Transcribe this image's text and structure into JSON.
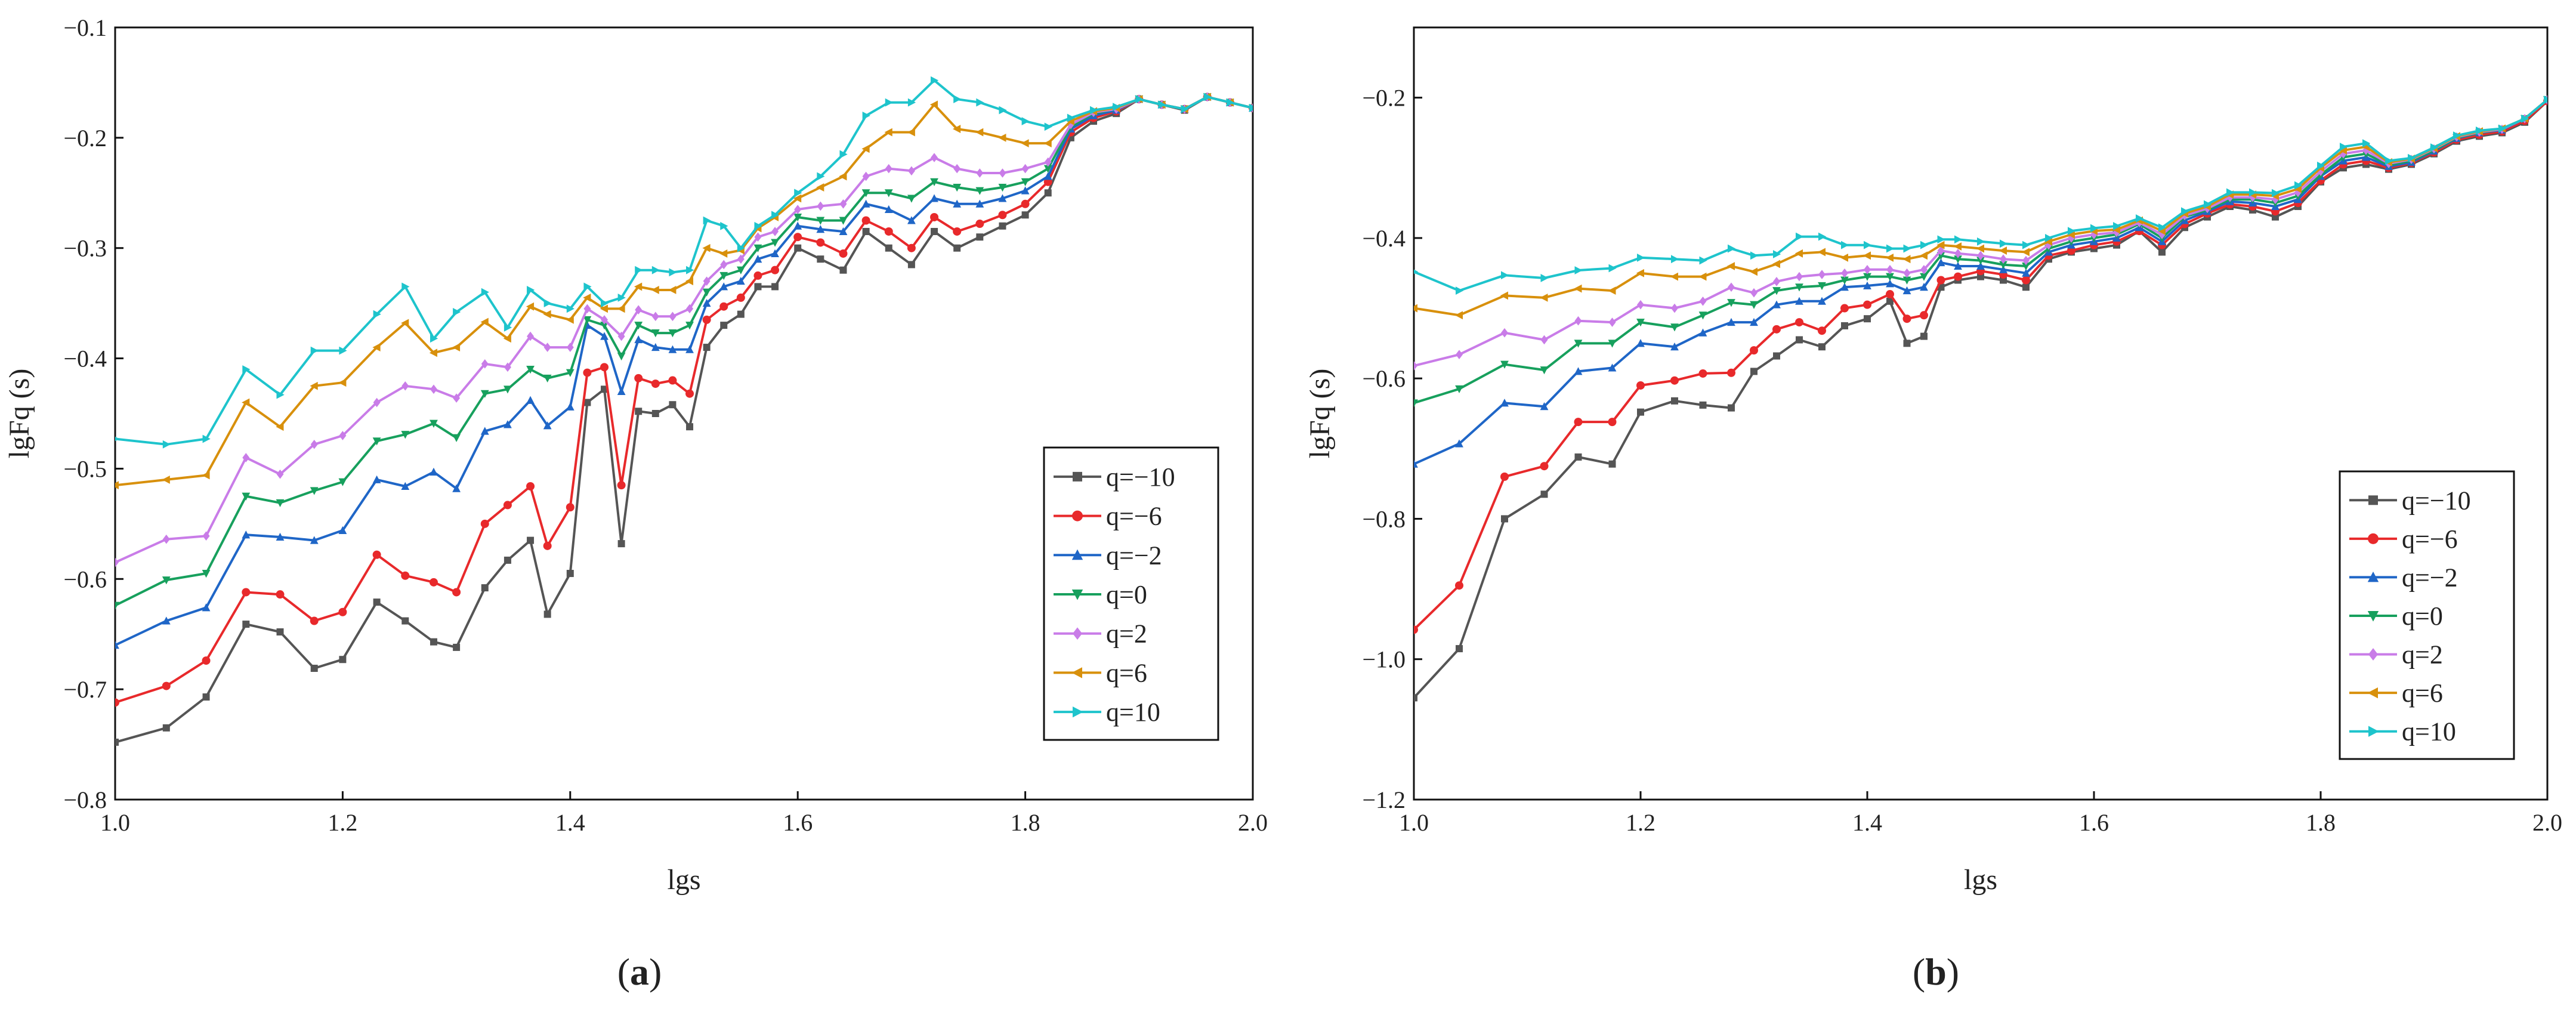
{
  "chart_data": [
    {
      "type": "line",
      "panel": "a",
      "caption_prefix": "(",
      "caption_letter": "a",
      "caption_suffix": ")",
      "title": "",
      "xlabel": "lgs",
      "ylabel": "lgFq (s)",
      "xlim": [
        1.0,
        2.0
      ],
      "ylim": [
        -0.8,
        -0.1
      ],
      "xticks": [
        1.0,
        1.2,
        1.4,
        1.6,
        1.8,
        2.0
      ],
      "xtick_labels": [
        "1.0",
        "1.2",
        "1.4",
        "1.6",
        "1.8",
        "2.0"
      ],
      "yticks": [
        -0.8,
        -0.7,
        -0.6,
        -0.5,
        -0.4,
        -0.3,
        -0.2,
        -0.1
      ],
      "ytick_labels": [
        "−0.8",
        "−0.7",
        "−0.6",
        "−0.5",
        "−0.4",
        "−0.3",
        "−0.2",
        "−0.1"
      ],
      "legend_position": "lower-right",
      "x": [
        1.0,
        1.045,
        1.08,
        1.115,
        1.145,
        1.175,
        1.2,
        1.23,
        1.255,
        1.28,
        1.3,
        1.325,
        1.345,
        1.365,
        1.38,
        1.4,
        1.415,
        1.43,
        1.445,
        1.46,
        1.475,
        1.49,
        1.505,
        1.52,
        1.535,
        1.55,
        1.565,
        1.58,
        1.6,
        1.62,
        1.64,
        1.66,
        1.68,
        1.7,
        1.72,
        1.74,
        1.76,
        1.78,
        1.8,
        1.82,
        1.84,
        1.86,
        1.88,
        1.9,
        1.92,
        1.94,
        1.96,
        1.98,
        2.0
      ],
      "series": [
        {
          "name": "q=−10",
          "color": "#555555",
          "marker": "square",
          "values": [
            -0.748,
            -0.735,
            -0.707,
            -0.641,
            -0.648,
            -0.681,
            -0.673,
            -0.621,
            -0.638,
            -0.657,
            -0.662,
            -0.608,
            -0.583,
            -0.565,
            -0.632,
            -0.595,
            -0.44,
            -0.428,
            -0.568,
            -0.448,
            -0.45,
            -0.442,
            -0.462,
            -0.39,
            -0.37,
            -0.36,
            -0.335,
            -0.335,
            -0.3,
            -0.31,
            -0.32,
            -0.285,
            -0.3,
            -0.315,
            -0.285,
            -0.3,
            -0.29,
            -0.28,
            -0.27,
            -0.25,
            -0.2,
            -0.185,
            -0.178,
            -0.165,
            -0.17,
            -0.175,
            -0.163,
            -0.168,
            -0.173
          ]
        },
        {
          "name": "q=−6",
          "color": "#e8292b",
          "marker": "circle",
          "values": [
            -0.712,
            -0.697,
            -0.674,
            -0.612,
            -0.614,
            -0.638,
            -0.63,
            -0.578,
            -0.597,
            -0.603,
            -0.612,
            -0.55,
            -0.533,
            -0.516,
            -0.57,
            -0.535,
            -0.413,
            -0.408,
            -0.515,
            -0.418,
            -0.423,
            -0.42,
            -0.432,
            -0.365,
            -0.353,
            -0.345,
            -0.325,
            -0.32,
            -0.29,
            -0.295,
            -0.305,
            -0.275,
            -0.285,
            -0.3,
            -0.272,
            -0.285,
            -0.278,
            -0.27,
            -0.26,
            -0.24,
            -0.195,
            -0.182,
            -0.176,
            -0.165,
            -0.17,
            -0.174,
            -0.163,
            -0.168,
            -0.173
          ]
        },
        {
          "name": "q=−2",
          "color": "#1f66c7",
          "marker": "triangle-up",
          "values": [
            -0.66,
            -0.638,
            -0.626,
            -0.56,
            -0.562,
            -0.565,
            -0.556,
            -0.51,
            -0.516,
            -0.503,
            -0.518,
            -0.466,
            -0.46,
            -0.438,
            -0.461,
            -0.444,
            -0.37,
            -0.38,
            -0.43,
            -0.383,
            -0.39,
            -0.392,
            -0.392,
            -0.35,
            -0.335,
            -0.33,
            -0.31,
            -0.305,
            -0.28,
            -0.283,
            -0.285,
            -0.26,
            -0.265,
            -0.275,
            -0.255,
            -0.26,
            -0.26,
            -0.255,
            -0.248,
            -0.235,
            -0.192,
            -0.18,
            -0.175,
            -0.165,
            -0.17,
            -0.174,
            -0.163,
            -0.168,
            -0.173
          ]
        },
        {
          "name": "q=0",
          "color": "#17a05d",
          "marker": "triangle-down",
          "values": [
            -0.624,
            -0.601,
            -0.595,
            -0.525,
            -0.531,
            -0.52,
            -0.512,
            -0.475,
            -0.469,
            -0.459,
            -0.472,
            -0.432,
            -0.428,
            -0.41,
            -0.418,
            -0.413,
            -0.365,
            -0.37,
            -0.398,
            -0.37,
            -0.377,
            -0.377,
            -0.37,
            -0.34,
            -0.325,
            -0.32,
            -0.3,
            -0.295,
            -0.272,
            -0.275,
            -0.275,
            -0.25,
            -0.25,
            -0.255,
            -0.24,
            -0.245,
            -0.248,
            -0.245,
            -0.24,
            -0.228,
            -0.19,
            -0.178,
            -0.174,
            -0.165,
            -0.17,
            -0.174,
            -0.163,
            -0.168,
            -0.173
          ]
        },
        {
          "name": "q=2",
          "color": "#c97ce8",
          "marker": "diamond",
          "values": [
            -0.585,
            -0.564,
            -0.561,
            -0.49,
            -0.505,
            -0.478,
            -0.47,
            -0.44,
            -0.425,
            -0.428,
            -0.436,
            -0.405,
            -0.408,
            -0.38,
            -0.39,
            -0.39,
            -0.355,
            -0.365,
            -0.38,
            -0.356,
            -0.362,
            -0.362,
            -0.355,
            -0.33,
            -0.315,
            -0.31,
            -0.29,
            -0.285,
            -0.265,
            -0.262,
            -0.26,
            -0.235,
            -0.228,
            -0.23,
            -0.218,
            -0.228,
            -0.232,
            -0.232,
            -0.228,
            -0.222,
            -0.188,
            -0.177,
            -0.174,
            -0.165,
            -0.17,
            -0.174,
            -0.163,
            -0.168,
            -0.173
          ]
        },
        {
          "name": "q=6",
          "color": "#d8900c",
          "marker": "triangle-left",
          "values": [
            -0.515,
            -0.51,
            -0.506,
            -0.44,
            -0.462,
            -0.425,
            -0.422,
            -0.39,
            -0.368,
            -0.395,
            -0.39,
            -0.367,
            -0.382,
            -0.353,
            -0.36,
            -0.365,
            -0.345,
            -0.355,
            -0.355,
            -0.335,
            -0.338,
            -0.338,
            -0.33,
            -0.3,
            -0.305,
            -0.302,
            -0.282,
            -0.272,
            -0.255,
            -0.245,
            -0.235,
            -0.21,
            -0.195,
            -0.195,
            -0.17,
            -0.192,
            -0.195,
            -0.2,
            -0.205,
            -0.205,
            -0.185,
            -0.176,
            -0.173,
            -0.165,
            -0.17,
            -0.174,
            -0.163,
            -0.168,
            -0.173
          ]
        },
        {
          "name": "q=10",
          "color": "#1ec4cc",
          "marker": "triangle-right",
          "values": [
            -0.473,
            -0.478,
            -0.473,
            -0.41,
            -0.433,
            -0.393,
            -0.393,
            -0.36,
            -0.335,
            -0.382,
            -0.358,
            -0.34,
            -0.372,
            -0.338,
            -0.35,
            -0.355,
            -0.335,
            -0.35,
            -0.345,
            -0.32,
            -0.32,
            -0.322,
            -0.32,
            -0.275,
            -0.28,
            -0.3,
            -0.28,
            -0.27,
            -0.25,
            -0.235,
            -0.215,
            -0.18,
            -0.168,
            -0.168,
            -0.148,
            -0.165,
            -0.168,
            -0.175,
            -0.185,
            -0.19,
            -0.182,
            -0.175,
            -0.172,
            -0.165,
            -0.17,
            -0.174,
            -0.163,
            -0.168,
            -0.173
          ]
        }
      ]
    },
    {
      "type": "line",
      "panel": "b",
      "caption_prefix": "(",
      "caption_letter": "b",
      "caption_suffix": ")",
      "title": "",
      "xlabel": "lgs",
      "ylabel": "lgFq (s)",
      "xlim": [
        1.0,
        2.0
      ],
      "ylim": [
        -1.2,
        -0.1
      ],
      "xticks": [
        1.0,
        1.2,
        1.4,
        1.6,
        1.8,
        2.0
      ],
      "xtick_labels": [
        "1.0",
        "1.2",
        "1.4",
        "1.6",
        "1.8",
        "2.0"
      ],
      "yticks": [
        -1.2,
        -1.0,
        -0.8,
        -0.6,
        -0.4,
        -0.2
      ],
      "ytick_labels": [
        "−1.2",
        "−1.0",
        "−0.8",
        "−0.6",
        "−0.4",
        "−0.2"
      ],
      "legend_position": "lower-right",
      "x": [
        1.0,
        1.04,
        1.08,
        1.115,
        1.145,
        1.175,
        1.2,
        1.23,
        1.255,
        1.28,
        1.3,
        1.32,
        1.34,
        1.36,
        1.38,
        1.4,
        1.42,
        1.435,
        1.45,
        1.465,
        1.48,
        1.5,
        1.52,
        1.54,
        1.56,
        1.58,
        1.6,
        1.62,
        1.64,
        1.66,
        1.68,
        1.7,
        1.72,
        1.74,
        1.76,
        1.78,
        1.8,
        1.82,
        1.84,
        1.86,
        1.88,
        1.9,
        1.92,
        1.94,
        1.96,
        1.98,
        2.0
      ],
      "series": [
        {
          "name": "q=−10",
          "color": "#555555",
          "marker": "square",
          "values": [
            -1.055,
            -0.985,
            -0.8,
            -0.765,
            -0.712,
            -0.722,
            -0.648,
            -0.632,
            -0.638,
            -0.642,
            -0.59,
            -0.568,
            -0.545,
            -0.555,
            -0.525,
            -0.515,
            -0.49,
            -0.55,
            -0.54,
            -0.47,
            -0.46,
            -0.455,
            -0.46,
            -0.47,
            -0.43,
            -0.42,
            -0.415,
            -0.41,
            -0.39,
            -0.42,
            -0.385,
            -0.37,
            -0.355,
            -0.36,
            -0.37,
            -0.355,
            -0.32,
            -0.3,
            -0.295,
            -0.302,
            -0.295,
            -0.28,
            -0.262,
            -0.255,
            -0.25,
            -0.235,
            -0.205
          ]
        },
        {
          "name": "q=−6",
          "color": "#e8292b",
          "marker": "circle",
          "values": [
            -0.958,
            -0.895,
            -0.74,
            -0.725,
            -0.662,
            -0.662,
            -0.61,
            -0.603,
            -0.593,
            -0.592,
            -0.56,
            -0.53,
            -0.52,
            -0.532,
            -0.5,
            -0.495,
            -0.48,
            -0.515,
            -0.51,
            -0.46,
            -0.455,
            -0.447,
            -0.452,
            -0.46,
            -0.425,
            -0.418,
            -0.41,
            -0.405,
            -0.39,
            -0.41,
            -0.38,
            -0.365,
            -0.352,
            -0.355,
            -0.362,
            -0.35,
            -0.318,
            -0.295,
            -0.29,
            -0.3,
            -0.293,
            -0.278,
            -0.26,
            -0.253,
            -0.248,
            -0.233,
            -0.205
          ]
        },
        {
          "name": "q=−2",
          "color": "#1f66c7",
          "marker": "triangle-up",
          "values": [
            -0.722,
            -0.693,
            -0.635,
            -0.64,
            -0.59,
            -0.585,
            -0.55,
            -0.555,
            -0.535,
            -0.52,
            -0.52,
            -0.495,
            -0.49,
            -0.49,
            -0.47,
            -0.468,
            -0.465,
            -0.475,
            -0.47,
            -0.435,
            -0.44,
            -0.44,
            -0.445,
            -0.45,
            -0.42,
            -0.41,
            -0.405,
            -0.4,
            -0.385,
            -0.405,
            -0.375,
            -0.362,
            -0.348,
            -0.35,
            -0.355,
            -0.345,
            -0.312,
            -0.29,
            -0.285,
            -0.298,
            -0.292,
            -0.276,
            -0.258,
            -0.25,
            -0.246,
            -0.23,
            -0.203
          ]
        },
        {
          "name": "q=0",
          "color": "#17a05d",
          "marker": "triangle-down",
          "values": [
            -0.635,
            -0.615,
            -0.58,
            -0.588,
            -0.55,
            -0.55,
            -0.52,
            -0.527,
            -0.51,
            -0.492,
            -0.495,
            -0.475,
            -0.47,
            -0.468,
            -0.46,
            -0.455,
            -0.455,
            -0.46,
            -0.455,
            -0.425,
            -0.43,
            -0.432,
            -0.438,
            -0.44,
            -0.415,
            -0.405,
            -0.4,
            -0.395,
            -0.38,
            -0.4,
            -0.37,
            -0.36,
            -0.345,
            -0.345,
            -0.35,
            -0.34,
            -0.31,
            -0.285,
            -0.28,
            -0.296,
            -0.29,
            -0.275,
            -0.257,
            -0.25,
            -0.245,
            -0.23,
            -0.203
          ]
        },
        {
          "name": "q=2",
          "color": "#c97ce8",
          "marker": "diamond",
          "values": [
            -0.582,
            -0.566,
            -0.535,
            -0.545,
            -0.518,
            -0.52,
            -0.495,
            -0.5,
            -0.49,
            -0.47,
            -0.478,
            -0.462,
            -0.455,
            -0.452,
            -0.45,
            -0.445,
            -0.445,
            -0.45,
            -0.445,
            -0.418,
            -0.422,
            -0.425,
            -0.43,
            -0.432,
            -0.41,
            -0.4,
            -0.395,
            -0.392,
            -0.378,
            -0.395,
            -0.368,
            -0.358,
            -0.342,
            -0.342,
            -0.345,
            -0.335,
            -0.305,
            -0.28,
            -0.275,
            -0.294,
            -0.288,
            -0.273,
            -0.256,
            -0.249,
            -0.245,
            -0.23,
            -0.203
          ]
        },
        {
          "name": "q=6",
          "color": "#d8900c",
          "marker": "triangle-left",
          "values": [
            -0.5,
            -0.51,
            -0.482,
            -0.485,
            -0.472,
            -0.475,
            -0.45,
            -0.455,
            -0.455,
            -0.44,
            -0.448,
            -0.437,
            -0.422,
            -0.42,
            -0.428,
            -0.425,
            -0.428,
            -0.43,
            -0.425,
            -0.41,
            -0.412,
            -0.415,
            -0.418,
            -0.42,
            -0.405,
            -0.395,
            -0.39,
            -0.388,
            -0.375,
            -0.39,
            -0.365,
            -0.355,
            -0.338,
            -0.338,
            -0.34,
            -0.33,
            -0.3,
            -0.275,
            -0.27,
            -0.292,
            -0.287,
            -0.272,
            -0.255,
            -0.248,
            -0.244,
            -0.23,
            -0.203
          ]
        },
        {
          "name": "q=10",
          "color": "#1ec4cc",
          "marker": "triangle-right",
          "values": [
            -0.448,
            -0.475,
            -0.453,
            -0.457,
            -0.446,
            -0.443,
            -0.428,
            -0.43,
            -0.432,
            -0.415,
            -0.425,
            -0.423,
            -0.398,
            -0.398,
            -0.41,
            -0.41,
            -0.415,
            -0.415,
            -0.41,
            -0.402,
            -0.402,
            -0.405,
            -0.408,
            -0.41,
            -0.4,
            -0.39,
            -0.386,
            -0.383,
            -0.372,
            -0.385,
            -0.362,
            -0.352,
            -0.335,
            -0.335,
            -0.336,
            -0.325,
            -0.297,
            -0.27,
            -0.265,
            -0.29,
            -0.286,
            -0.271,
            -0.254,
            -0.247,
            -0.244,
            -0.23,
            -0.203
          ]
        }
      ]
    }
  ]
}
